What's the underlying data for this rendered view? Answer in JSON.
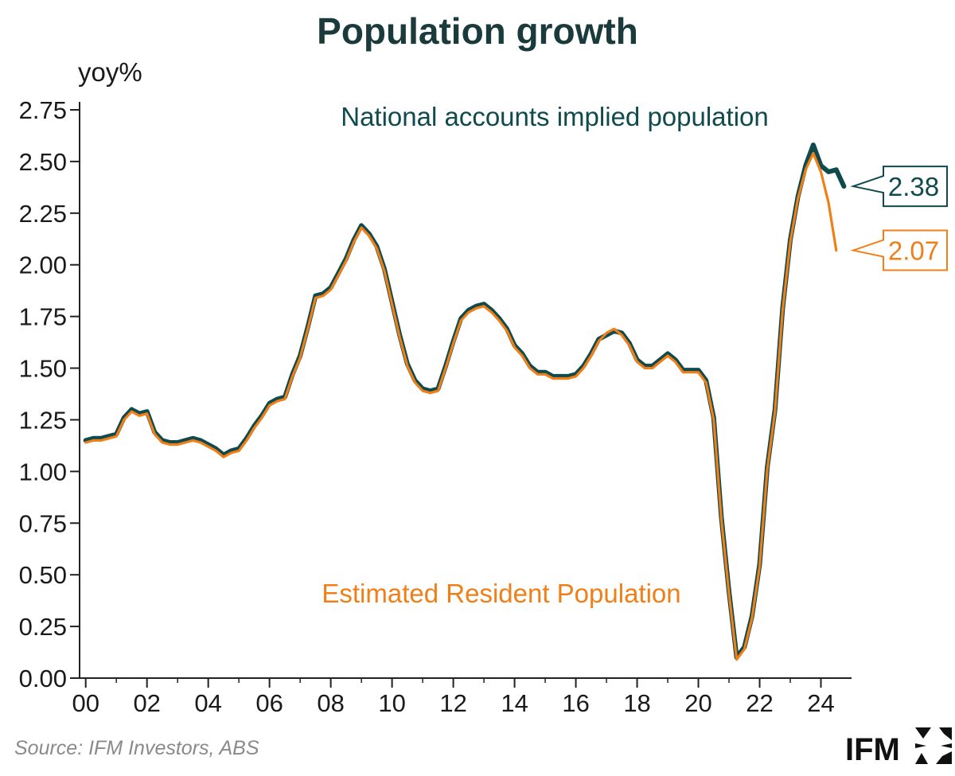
{
  "chart_data": {
    "type": "line",
    "title": "Population growth",
    "ylabel": "yoy%",
    "xlabel": "",
    "ylim": [
      0,
      2.75
    ],
    "yticks": [
      "0.00",
      "0.25",
      "0.50",
      "0.75",
      "1.00",
      "1.25",
      "1.50",
      "1.75",
      "2.00",
      "2.25",
      "2.50",
      "2.75"
    ],
    "xticks": [
      "00",
      "02",
      "04",
      "06",
      "08",
      "10",
      "12",
      "14",
      "16",
      "18",
      "20",
      "22",
      "24"
    ],
    "xtick_years": [
      2000,
      2002,
      2004,
      2006,
      2008,
      2010,
      2012,
      2014,
      2016,
      2018,
      2020,
      2022,
      2024
    ],
    "xlim": [
      1999.8,
      2025.0
    ],
    "grid": false,
    "legend": "none",
    "source": "Source: IFM Investors, ABS",
    "logo": "IFM",
    "series": [
      {
        "name": "National accounts implied population",
        "color": "#0f4a4d",
        "end_label": "2.38",
        "x": [
          2000.0,
          2000.25,
          2000.5,
          2000.75,
          2001.0,
          2001.25,
          2001.5,
          2001.75,
          2002.0,
          2002.25,
          2002.5,
          2002.75,
          2003.0,
          2003.25,
          2003.5,
          2003.75,
          2004.0,
          2004.25,
          2004.5,
          2004.75,
          2005.0,
          2005.25,
          2005.5,
          2005.75,
          2006.0,
          2006.25,
          2006.5,
          2006.75,
          2007.0,
          2007.25,
          2007.5,
          2007.75,
          2008.0,
          2008.25,
          2008.5,
          2008.75,
          2009.0,
          2009.25,
          2009.5,
          2009.75,
          2010.0,
          2010.25,
          2010.5,
          2010.75,
          2011.0,
          2011.25,
          2011.5,
          2011.75,
          2012.0,
          2012.25,
          2012.5,
          2012.75,
          2013.0,
          2013.25,
          2013.5,
          2013.75,
          2014.0,
          2014.25,
          2014.5,
          2014.75,
          2015.0,
          2015.25,
          2015.5,
          2015.75,
          2016.0,
          2016.25,
          2016.5,
          2016.75,
          2017.0,
          2017.25,
          2017.5,
          2017.75,
          2018.0,
          2018.25,
          2018.5,
          2018.75,
          2019.0,
          2019.25,
          2019.5,
          2019.75,
          2020.0,
          2020.25,
          2020.5,
          2020.75,
          2021.0,
          2021.25,
          2021.5,
          2021.75,
          2022.0,
          2022.25,
          2022.5,
          2022.75,
          2023.0,
          2023.25,
          2023.5,
          2023.75,
          2024.0,
          2024.25,
          2024.5,
          2024.75
        ],
        "values": [
          1.15,
          1.16,
          1.16,
          1.17,
          1.18,
          1.26,
          1.3,
          1.28,
          1.29,
          1.19,
          1.15,
          1.14,
          1.14,
          1.15,
          1.16,
          1.15,
          1.13,
          1.11,
          1.08,
          1.1,
          1.11,
          1.16,
          1.22,
          1.27,
          1.33,
          1.35,
          1.36,
          1.47,
          1.56,
          1.7,
          1.85,
          1.86,
          1.89,
          1.96,
          2.03,
          2.12,
          2.19,
          2.15,
          2.09,
          1.98,
          1.82,
          1.66,
          1.52,
          1.44,
          1.4,
          1.39,
          1.4,
          1.51,
          1.63,
          1.74,
          1.78,
          1.8,
          1.81,
          1.78,
          1.74,
          1.69,
          1.61,
          1.57,
          1.51,
          1.48,
          1.48,
          1.46,
          1.46,
          1.46,
          1.47,
          1.51,
          1.57,
          1.64,
          1.66,
          1.68,
          1.67,
          1.62,
          1.54,
          1.51,
          1.51,
          1.54,
          1.57,
          1.54,
          1.49,
          1.49,
          1.49,
          1.44,
          1.26,
          0.78,
          0.42,
          0.1,
          0.15,
          0.3,
          0.55,
          1.02,
          1.3,
          1.79,
          2.12,
          2.33,
          2.48,
          2.58,
          2.48,
          2.45,
          2.46,
          2.38
        ]
      },
      {
        "name": "Estimated Resident Population",
        "color": "#f07f18",
        "end_label": "2.07",
        "x": [
          2000.0,
          2000.25,
          2000.5,
          2000.75,
          2001.0,
          2001.25,
          2001.5,
          2001.75,
          2002.0,
          2002.25,
          2002.5,
          2002.75,
          2003.0,
          2003.25,
          2003.5,
          2003.75,
          2004.0,
          2004.25,
          2004.5,
          2004.75,
          2005.0,
          2005.25,
          2005.5,
          2005.75,
          2006.0,
          2006.25,
          2006.5,
          2006.75,
          2007.0,
          2007.25,
          2007.5,
          2007.75,
          2008.0,
          2008.25,
          2008.5,
          2008.75,
          2009.0,
          2009.25,
          2009.5,
          2009.75,
          2010.0,
          2010.25,
          2010.5,
          2010.75,
          2011.0,
          2011.25,
          2011.5,
          2011.75,
          2012.0,
          2012.25,
          2012.5,
          2012.75,
          2013.0,
          2013.25,
          2013.5,
          2013.75,
          2014.0,
          2014.25,
          2014.5,
          2014.75,
          2015.0,
          2015.25,
          2015.5,
          2015.75,
          2016.0,
          2016.25,
          2016.5,
          2016.75,
          2017.0,
          2017.25,
          2017.5,
          2017.75,
          2018.0,
          2018.25,
          2018.5,
          2018.75,
          2019.0,
          2019.25,
          2019.5,
          2019.75,
          2020.0,
          2020.25,
          2020.5,
          2020.75,
          2021.0,
          2021.25,
          2021.5,
          2021.75,
          2022.0,
          2022.25,
          2022.5,
          2022.75,
          2023.0,
          2023.25,
          2023.5,
          2023.75,
          2024.0,
          2024.25,
          2024.5
        ],
        "values": [
          1.14,
          1.15,
          1.15,
          1.16,
          1.17,
          1.25,
          1.29,
          1.27,
          1.28,
          1.18,
          1.14,
          1.13,
          1.13,
          1.14,
          1.15,
          1.14,
          1.12,
          1.1,
          1.07,
          1.09,
          1.1,
          1.15,
          1.21,
          1.26,
          1.32,
          1.34,
          1.35,
          1.46,
          1.55,
          1.69,
          1.84,
          1.85,
          1.88,
          1.95,
          2.02,
          2.11,
          2.18,
          2.14,
          2.08,
          1.97,
          1.81,
          1.65,
          1.51,
          1.43,
          1.39,
          1.38,
          1.39,
          1.5,
          1.62,
          1.73,
          1.77,
          1.79,
          1.8,
          1.77,
          1.73,
          1.68,
          1.6,
          1.56,
          1.5,
          1.47,
          1.47,
          1.45,
          1.45,
          1.45,
          1.46,
          1.5,
          1.56,
          1.63,
          1.67,
          1.69,
          1.66,
          1.61,
          1.53,
          1.5,
          1.5,
          1.53,
          1.56,
          1.53,
          1.48,
          1.48,
          1.48,
          1.43,
          1.25,
          0.77,
          0.41,
          0.09,
          0.14,
          0.29,
          0.54,
          1.01,
          1.29,
          1.78,
          2.11,
          2.32,
          2.46,
          2.54,
          2.45,
          2.3,
          2.07
        ]
      }
    ]
  }
}
